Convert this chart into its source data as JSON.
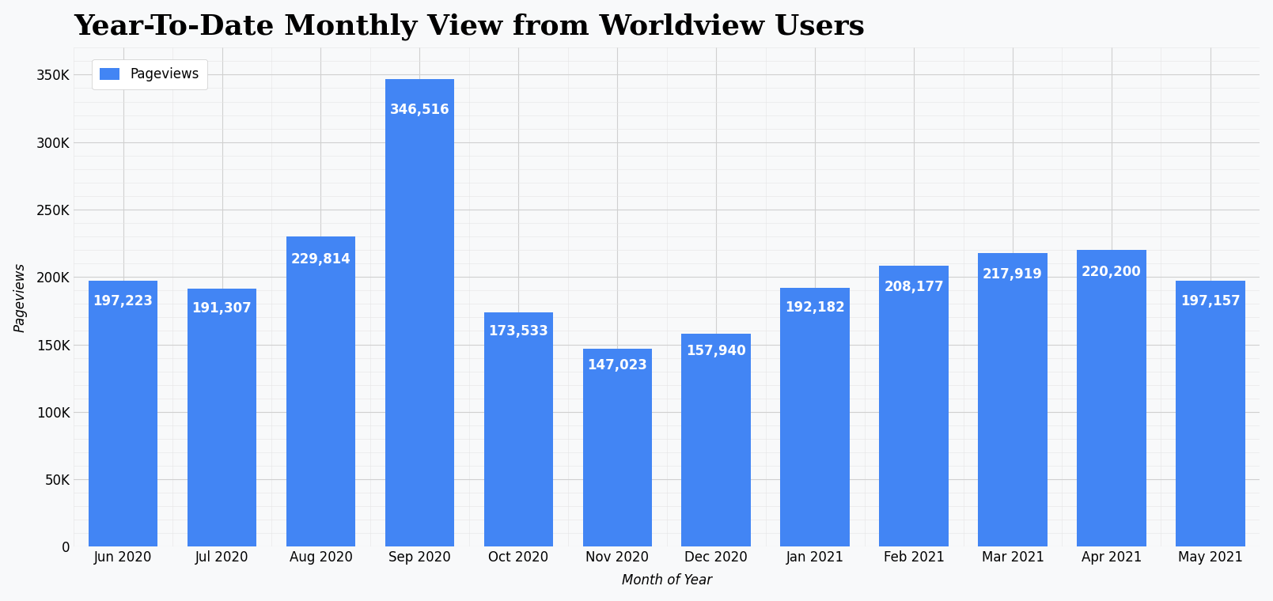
{
  "title": "Year-To-Date Monthly View from Worldview Users",
  "xlabel": "Month of Year",
  "ylabel": "Pageviews",
  "legend_label": "Pageviews",
  "categories": [
    "Jun 2020",
    "Jul 2020",
    "Aug 2020",
    "Sep 2020",
    "Oct 2020",
    "Nov 2020",
    "Dec 2020",
    "Jan 2021",
    "Feb 2021",
    "Mar 2021",
    "Apr 2021",
    "May 2021"
  ],
  "values": [
    197223,
    191307,
    229814,
    346516,
    173533,
    147023,
    157940,
    192182,
    208177,
    217919,
    220200,
    197157
  ],
  "bar_color": "#4285f4",
  "label_color": "#ffffff",
  "background_color": "#f8f9fa",
  "grid_color": "#d0d0d0",
  "minor_grid_color": "#e5e5e5",
  "ylim": [
    0,
    370000
  ],
  "yticks": [
    0,
    50000,
    100000,
    150000,
    200000,
    250000,
    300000,
    350000
  ],
  "ytick_labels": [
    "0",
    "50K",
    "100K",
    "150K",
    "200K",
    "250K",
    "300K",
    "350K"
  ],
  "title_fontsize": 26,
  "label_fontsize": 12,
  "bar_label_fontsize": 12,
  "axis_label_fontsize": 12,
  "legend_fontsize": 12
}
